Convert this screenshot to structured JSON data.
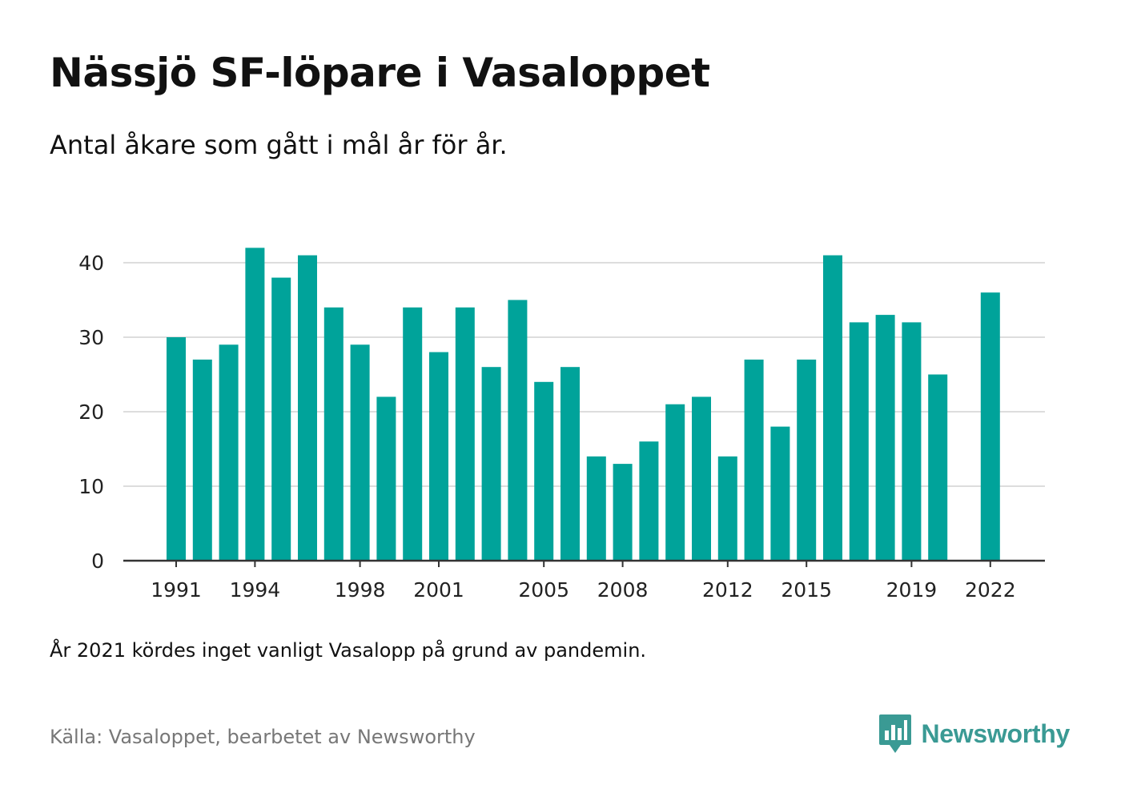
{
  "header": {
    "title": "Nässjö SF-löpare i Vasaloppet",
    "subtitle": "Antal åkare som gått i mål år för år."
  },
  "footer": {
    "note": "År 2021 kördes inget vanligt Vasalopp på grund av pandemin.",
    "source": "Källa: Vasaloppet, bearbetet av Newsworthy",
    "brand_name": "Newsworthy",
    "brand_icon": "newsworthy-logo-icon"
  },
  "colors": {
    "bar": "#00a39a",
    "grid": "#dddddd",
    "axis": "#333333",
    "brand": "#3a9a94"
  },
  "chart_data": {
    "type": "bar",
    "title": "Nässjö SF-löpare i Vasaloppet",
    "subtitle": "Antal åkare som gått i mål år för år.",
    "xlabel": "",
    "ylabel": "",
    "ylim": [
      0,
      40
    ],
    "yticks": [
      0,
      10,
      20,
      30,
      40
    ],
    "grid": true,
    "legend": "none",
    "x_tick_labels": [
      "1991",
      "1994",
      "1998",
      "2001",
      "2005",
      "2008",
      "2012",
      "2015",
      "2019",
      "2022"
    ],
    "categories": [
      "1991",
      "1992",
      "1993",
      "1994",
      "1995",
      "1996",
      "1997",
      "1998",
      "1999",
      "2000",
      "2001",
      "2002",
      "2003",
      "2004",
      "2005",
      "2006",
      "2007",
      "2008",
      "2009",
      "2010",
      "2011",
      "2012",
      "2013",
      "2014",
      "2015",
      "2016",
      "2017",
      "2018",
      "2019",
      "2020",
      "2021",
      "2022"
    ],
    "values": [
      30,
      27,
      29,
      42,
      38,
      41,
      34,
      29,
      22,
      34,
      28,
      34,
      26,
      35,
      24,
      26,
      14,
      13,
      16,
      21,
      22,
      14,
      27,
      18,
      27,
      41,
      32,
      33,
      32,
      25,
      null,
      36
    ]
  }
}
